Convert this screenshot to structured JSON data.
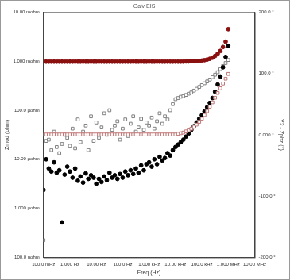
{
  "chart_data": {
    "type": "scatter",
    "title": "Galv EIS",
    "x_label": "Freq (Hz)",
    "y_label": "Zmod (ohm)",
    "y2_label": "Y2 - Zphz (°)",
    "log": true,
    "grid": false,
    "xlim": [
      0.1,
      10000000
    ],
    "xticks": [
      {
        "value": 0.1,
        "label": "100.0 mHz"
      },
      {
        "value": 1,
        "label": "1.000 Hz"
      },
      {
        "value": 10,
        "label": "10.00 Hz"
      },
      {
        "value": 100,
        "label": "100.0 Hz"
      },
      {
        "value": 1000,
        "label": "1.000 kHz"
      },
      {
        "value": 10000,
        "label": "10.00 kHz"
      },
      {
        "value": 100000,
        "label": "100.0 kHz"
      },
      {
        "value": 1000000,
        "label": "1.000 MHz"
      },
      {
        "value": 10000000,
        "label": "10.00 MHz"
      }
    ],
    "ylim": [
      1e-07,
      0.01
    ],
    "yticks": [
      {
        "value": 1e-07,
        "label": "100.0 nohm"
      },
      {
        "value": 1e-06,
        "label": "1.000 µohm"
      },
      {
        "value": 1e-05,
        "label": "10.00 µohm"
      },
      {
        "value": 0.0001,
        "label": "100.0 µohm"
      },
      {
        "value": 0.001,
        "label": "1.000 mohm"
      },
      {
        "value": 0.01,
        "label": "10.00 mohm"
      }
    ],
    "y2lim": [
      -200,
      200
    ],
    "y2ticks": [
      {
        "value": -200,
        "label": "-200.0 °"
      },
      {
        "value": -100,
        "label": "-100.0 °"
      },
      {
        "value": 0,
        "label": "0.000 °"
      },
      {
        "value": 100,
        "label": "100.0 °"
      },
      {
        "value": 200,
        "label": "200.0 °"
      }
    ],
    "x": [
      0.1,
      0.1259,
      0.1585,
      0.1995,
      0.2512,
      0.3162,
      0.3981,
      0.5012,
      0.631,
      0.7943,
      1,
      1.259,
      1.585,
      1.995,
      2.512,
      3.162,
      3.981,
      5.012,
      6.31,
      7.943,
      10,
      12.59,
      15.85,
      19.95,
      25.12,
      31.62,
      39.81,
      50.12,
      63.1,
      79.43,
      100,
      125.9,
      158.5,
      199.5,
      251.2,
      316.2,
      398.1,
      501.2,
      631,
      794.3,
      1000,
      1259,
      1585,
      1995,
      2512,
      3162,
      3981,
      5012,
      6310,
      7943,
      10000,
      12590,
      15850,
      19950,
      25120,
      31620,
      39810,
      50120,
      63100,
      79430,
      100000,
      125900,
      158500,
      199500,
      251200,
      316200,
      398100,
      501200,
      631000,
      794300,
      1000000
    ],
    "series": [
      {
        "color": "#8b1010",
        "marker": "circle",
        "values": [
          0.00098,
          0.00098,
          0.00098,
          0.00098,
          0.00098,
          0.00098,
          0.00098,
          0.00098,
          0.00098,
          0.00098,
          0.00098,
          0.00098,
          0.00098,
          0.00098,
          0.00098,
          0.00098,
          0.00098,
          0.00098,
          0.00098,
          0.00098,
          0.00098,
          0.00098,
          0.00098,
          0.00098,
          0.00098,
          0.00098,
          0.00098,
          0.00098,
          0.00098,
          0.00098,
          0.00098,
          0.00098,
          0.00098,
          0.00098,
          0.00098,
          0.00098,
          0.00098,
          0.00098,
          0.00098,
          0.00098,
          0.00098,
          0.00098,
          0.00098,
          0.00098,
          0.00098,
          0.00098,
          0.00098,
          0.00098,
          0.00098,
          0.00098,
          0.00098,
          0.00098,
          0.00098,
          0.00098,
          0.00099,
          0.00099,
          0.001,
          0.001,
          0.00101,
          0.00102,
          0.00103,
          0.00105,
          0.00108,
          0.00112,
          0.00118,
          0.00128,
          0.00142,
          0.00162,
          0.00195,
          0.0025,
          0.0045
        ]
      },
      {
        "color": "#c07878",
        "marker": "square",
        "values": [
          3.2e-05,
          3.2e-05,
          3.2e-05,
          3.2e-05,
          3.2e-05,
          3.2e-05,
          3.2e-05,
          3.2e-05,
          3.2e-05,
          3.2e-05,
          3.2e-05,
          3.2e-05,
          3.2e-05,
          3.2e-05,
          3.2e-05,
          3.2e-05,
          3.2e-05,
          3.2e-05,
          3.2e-05,
          3.2e-05,
          3.2e-05,
          3.2e-05,
          3.2e-05,
          3.2e-05,
          3.2e-05,
          3.2e-05,
          3.2e-05,
          3.2e-05,
          3.2e-05,
          3.2e-05,
          3.2e-05,
          3.2e-05,
          3.2e-05,
          3.2e-05,
          3.2e-05,
          3.2e-05,
          3.2e-05,
          3.2e-05,
          3.2e-05,
          3.2e-05,
          3.2e-05,
          3.2e-05,
          3.2e-05,
          3.2e-05,
          3.2e-05,
          3.2e-05,
          3.2e-05,
          3.2e-05,
          3.2e-05,
          3.2e-05,
          3.2e-05,
          3.3e-05,
          3.4e-05,
          3.5e-05,
          3.7e-05,
          3.9e-05,
          4.2e-05,
          4.6e-05,
          5.1e-05,
          5.8e-05,
          6.7e-05,
          8e-05,
          9.6e-05,
          0.000118,
          0.000145,
          0.00018,
          0.000225,
          0.00028,
          0.00035,
          0.00044,
          0.00055
        ]
      },
      {
        "color": "#000000",
        "marker": "circle",
        "axis": "y2",
        "values": [
          -90,
          -40,
          -55,
          -60,
          -45,
          -62,
          -58,
          -143,
          -65,
          -52,
          -60,
          -70,
          -55,
          -75,
          -68,
          -78,
          -63,
          -72,
          -66,
          -70,
          -80,
          -72,
          -77,
          -68,
          -74,
          -62,
          -70,
          -66,
          -72,
          -64,
          -70,
          -60,
          -66,
          -58,
          -64,
          -55,
          -62,
          -50,
          -58,
          -48,
          -45,
          -52,
          -40,
          -48,
          -36,
          -42,
          -38,
          -30,
          -34,
          -25,
          -20,
          -16,
          -12,
          -8,
          -3,
          2,
          8,
          14,
          20,
          26,
          32,
          38,
          45,
          52,
          60,
          70,
          82,
          95,
          110,
          127,
          145
        ]
      },
      {
        "color": "#808080",
        "marker": "square",
        "axis": "y2",
        "values": [
          -172,
          -10,
          -8,
          -25,
          5,
          -20,
          -30,
          -15,
          0,
          -5,
          -18,
          10,
          -22,
          25,
          -12,
          5,
          15,
          -25,
          30,
          -10,
          20,
          -5,
          12,
          35,
          0,
          40,
          8,
          15,
          22,
          -8,
          10,
          25,
          -2,
          18,
          30,
          5,
          12,
          26,
          8,
          20,
          15,
          28,
          10,
          22,
          35,
          18,
          30,
          25,
          40,
          50,
          58,
          60,
          62,
          63,
          65,
          67,
          69,
          72,
          75,
          78,
          81,
          84,
          87,
          90,
          94,
          98,
          102,
          107,
          112,
          117,
          122
        ]
      }
    ]
  }
}
